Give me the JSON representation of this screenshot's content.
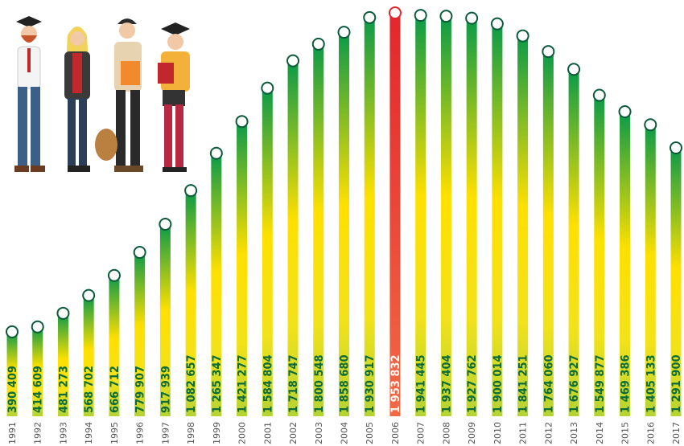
{
  "chart_data": {
    "type": "bar",
    "categories": [
      "1991",
      "1992",
      "1993",
      "1994",
      "1995",
      "1996",
      "1997",
      "1998",
      "1999",
      "2000",
      "2001",
      "2002",
      "2003",
      "2004",
      "2005",
      "2006",
      "2007",
      "2008",
      "2009",
      "2010",
      "2011",
      "2012",
      "2013",
      "2014",
      "2015",
      "2016",
      "2017"
    ],
    "values": [
      390409,
      414609,
      481273,
      568702,
      666712,
      779907,
      917939,
      1082657,
      1265347,
      1421277,
      1584804,
      1718747,
      1800548,
      1858680,
      1930917,
      1953832,
      1941445,
      1937404,
      1927762,
      1900014,
      1841251,
      1764060,
      1676927,
      1549877,
      1469386,
      1405133,
      1291900
    ],
    "value_labels": [
      "390 409",
      "414 609",
      "481 273",
      "568 702",
      "666 712",
      "779 907",
      "917 939",
      "1 082 657",
      "1 265 347",
      "1 421 277",
      "1 584 804",
      "1 718 747",
      "1 800 548",
      "1 858 680",
      "1 930 917",
      "1 953 832",
      "1 941 445",
      "1 937 404",
      "1 927 762",
      "1 900 014",
      "1 841 251",
      "1 764 060",
      "1 676 927",
      "1 549 877",
      "1 469 386",
      "1 405 133",
      "1 291 900"
    ],
    "color": "#0a9a48",
    "highlight_category": "2006",
    "highlight_color": "#e3262b"
  }
}
